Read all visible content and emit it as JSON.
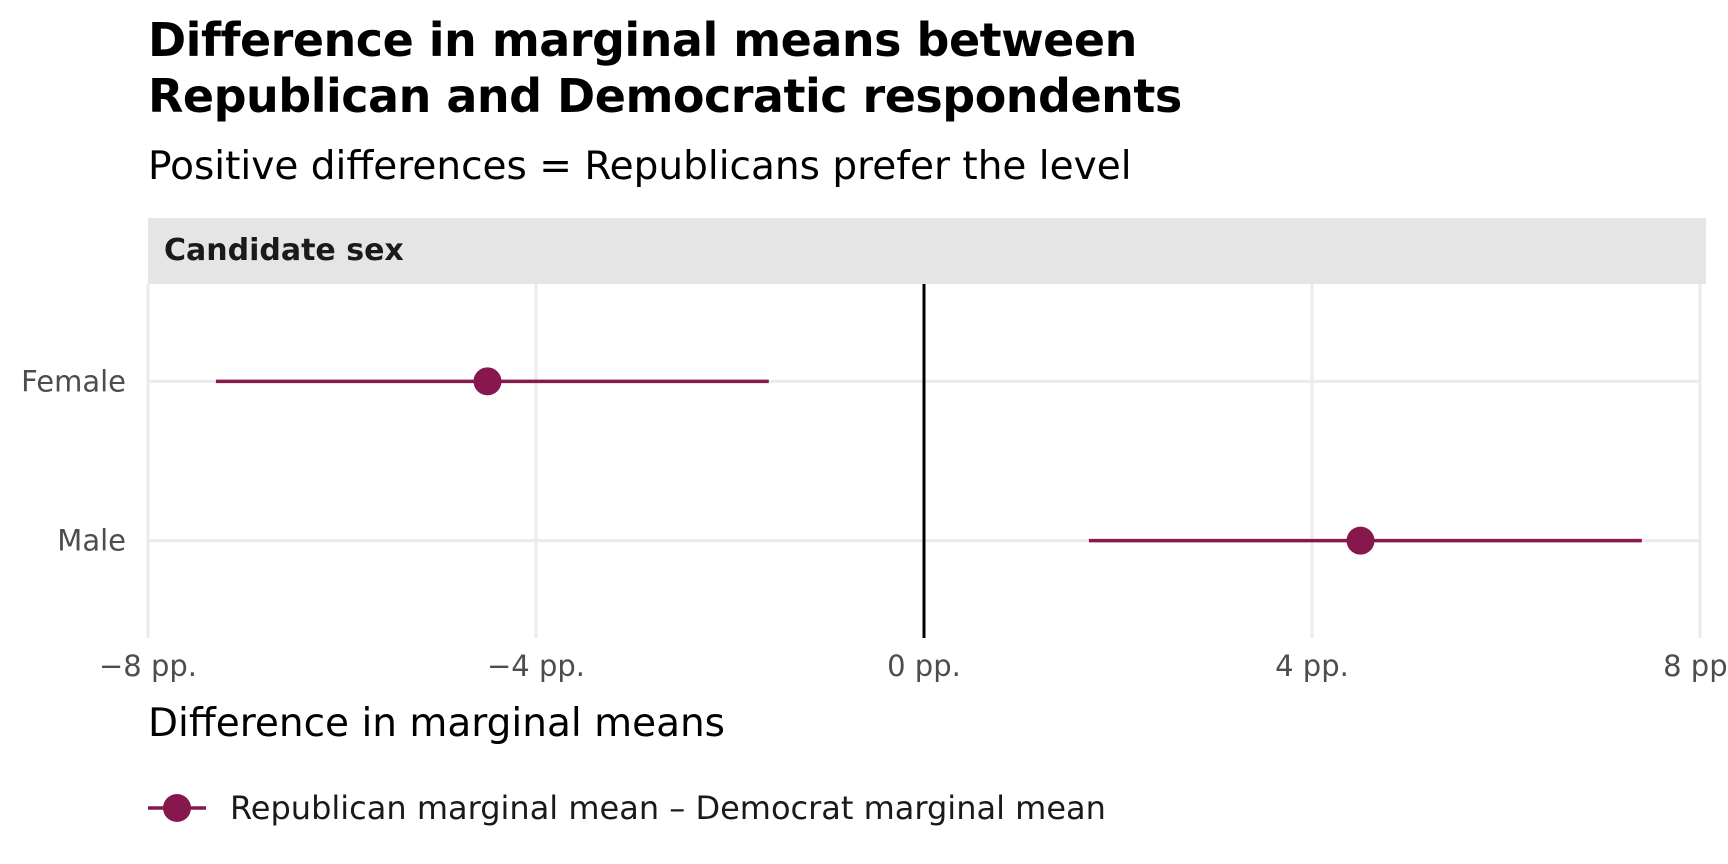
{
  "chart_data": {
    "type": "scatter",
    "title": "Difference in marginal means between\nRepublican and Democratic respondents",
    "subtitle": "Positive differences = Republicans prefer the level",
    "facet": "Candidate sex",
    "xlabel": "Difference in marginal means",
    "ylabel": "",
    "xlim": [
      -8,
      8
    ],
    "x_ticks": [
      -8,
      -4,
      0,
      4,
      8
    ],
    "x_tick_labels": [
      "−8 pp.",
      "−4 pp.",
      "0 pp.",
      "4 pp.",
      "8 pp."
    ],
    "categories": [
      "Female",
      "Male"
    ],
    "reference_line": 0,
    "grid": true,
    "legend_position": "bottom",
    "series": [
      {
        "name": "Republican marginal mean – Democrat marginal mean",
        "color": "#86184e",
        "points": [
          {
            "category": "Female",
            "estimate": -4.5,
            "low": -7.3,
            "high": -1.6
          },
          {
            "category": "Male",
            "estimate": 4.5,
            "low": 1.7,
            "high": 7.4
          }
        ]
      }
    ]
  }
}
